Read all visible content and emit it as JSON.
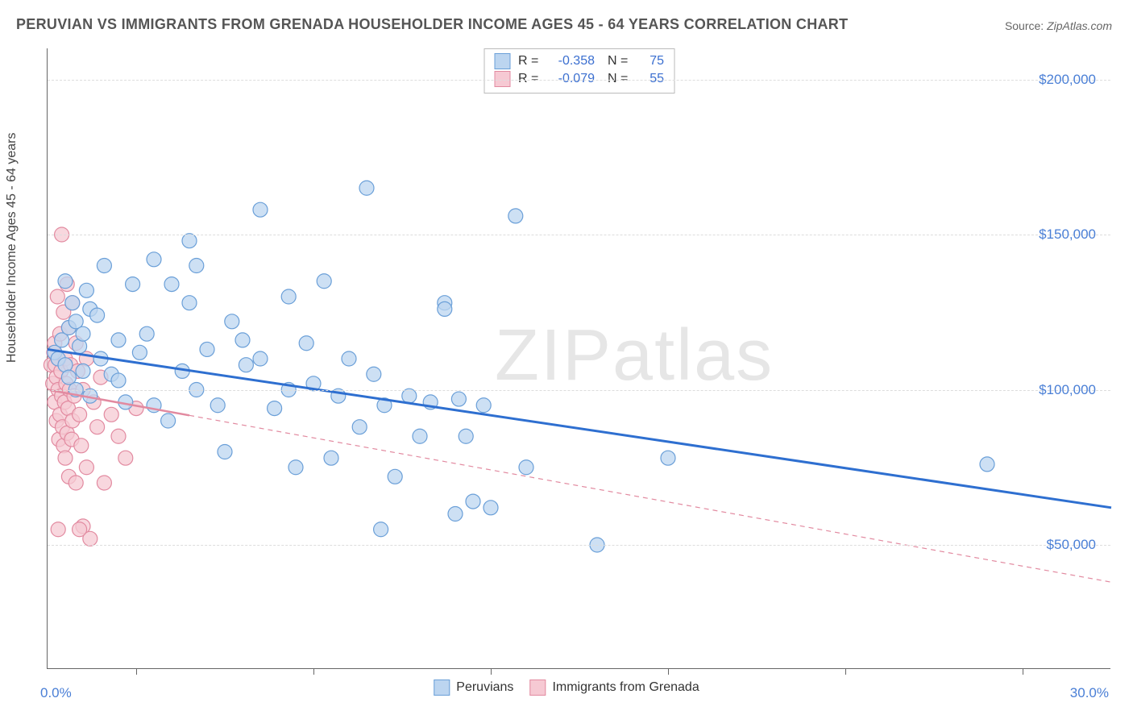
{
  "title": "PERUVIAN VS IMMIGRANTS FROM GRENADA HOUSEHOLDER INCOME AGES 45 - 64 YEARS CORRELATION CHART",
  "source_label": "Source:",
  "source_value": "ZipAtlas.com",
  "ylabel": "Householder Income Ages 45 - 64 years",
  "watermark": "ZIPatlas",
  "chart": {
    "type": "scatter",
    "xlim": [
      0,
      30
    ],
    "ylim": [
      10000,
      210000
    ],
    "x_start_label": "0.0%",
    "x_end_label": "30.0%",
    "xtick_positions": [
      2.5,
      7.5,
      12.5,
      17.5,
      22.5,
      27.5
    ],
    "ygrid": [
      {
        "value": 50000,
        "label": "$50,000"
      },
      {
        "value": 100000,
        "label": "$100,000"
      },
      {
        "value": 150000,
        "label": "$150,000"
      },
      {
        "value": 200000,
        "label": "$200,000"
      }
    ],
    "grid_color": "#dddddd",
    "background_color": "#ffffff",
    "axis_color": "#666666",
    "label_color": "#4a7fd6",
    "marker_radius": 9,
    "marker_stroke_width": 1.2,
    "series": [
      {
        "name": "Peruvians",
        "fill": "#bcd5f0",
        "stroke": "#6a9fd8",
        "trend_color": "#2e6fd0",
        "trend_width": 3,
        "trend_dash": "none",
        "R": "-0.358",
        "N": "75",
        "trend": {
          "x1": 0,
          "y1": 113000,
          "x2": 30,
          "y2": 62000
        },
        "points": [
          [
            0.2,
            112000
          ],
          [
            0.3,
            110000
          ],
          [
            0.4,
            116000
          ],
          [
            0.5,
            135000
          ],
          [
            0.5,
            108000
          ],
          [
            0.6,
            120000
          ],
          [
            0.6,
            104000
          ],
          [
            0.7,
            128000
          ],
          [
            0.8,
            122000
          ],
          [
            0.8,
            100000
          ],
          [
            0.9,
            114000
          ],
          [
            1.0,
            118000
          ],
          [
            1.0,
            106000
          ],
          [
            1.1,
            132000
          ],
          [
            1.2,
            98000
          ],
          [
            1.2,
            126000
          ],
          [
            1.4,
            124000
          ],
          [
            1.5,
            110000
          ],
          [
            1.6,
            140000
          ],
          [
            1.8,
            105000
          ],
          [
            2.0,
            103000
          ],
          [
            2.2,
            96000
          ],
          [
            2.4,
            134000
          ],
          [
            2.6,
            112000
          ],
          [
            2.8,
            118000
          ],
          [
            3.0,
            95000
          ],
          [
            3.0,
            142000
          ],
          [
            3.4,
            90000
          ],
          [
            3.5,
            134000
          ],
          [
            3.8,
            106000
          ],
          [
            4.0,
            148000
          ],
          [
            4.2,
            100000
          ],
          [
            4.2,
            140000
          ],
          [
            4.5,
            113000
          ],
          [
            4.8,
            95000
          ],
          [
            5.0,
            80000
          ],
          [
            5.2,
            122000
          ],
          [
            5.6,
            108000
          ],
          [
            6.0,
            110000
          ],
          [
            6.0,
            158000
          ],
          [
            6.4,
            94000
          ],
          [
            6.8,
            130000
          ],
          [
            7.0,
            75000
          ],
          [
            7.3,
            115000
          ],
          [
            7.5,
            102000
          ],
          [
            7.8,
            135000
          ],
          [
            8.0,
            78000
          ],
          [
            8.2,
            98000
          ],
          [
            8.5,
            110000
          ],
          [
            8.8,
            88000
          ],
          [
            9.0,
            165000
          ],
          [
            9.2,
            105000
          ],
          [
            9.4,
            55000
          ],
          [
            9.5,
            95000
          ],
          [
            9.8,
            72000
          ],
          [
            10.2,
            98000
          ],
          [
            10.5,
            85000
          ],
          [
            10.8,
            96000
          ],
          [
            11.2,
            128000
          ],
          [
            11.2,
            126000
          ],
          [
            11.5,
            60000
          ],
          [
            11.6,
            97000
          ],
          [
            11.8,
            85000
          ],
          [
            12.0,
            64000
          ],
          [
            12.3,
            95000
          ],
          [
            12.5,
            62000
          ],
          [
            13.2,
            156000
          ],
          [
            13.5,
            75000
          ],
          [
            15.5,
            50000
          ],
          [
            17.5,
            78000
          ],
          [
            26.5,
            76000
          ],
          [
            4.0,
            128000
          ],
          [
            5.5,
            116000
          ],
          [
            6.8,
            100000
          ],
          [
            2.0,
            116000
          ]
        ]
      },
      {
        "name": "Immigrants from Grenada",
        "fill": "#f6c9d3",
        "stroke": "#e28aa0",
        "trend_color": "#e28aa0",
        "trend_width": 1.5,
        "trend_dash": "6,5",
        "R": "-0.079",
        "N": "55",
        "trend": {
          "x1": 0,
          "y1": 100000,
          "x2": 30,
          "y2": 38000
        },
        "trend_visible_x_max": 4.0,
        "points": [
          [
            0.1,
            108000
          ],
          [
            0.15,
            102000
          ],
          [
            0.18,
            112000
          ],
          [
            0.2,
            115000
          ],
          [
            0.2,
            96000
          ],
          [
            0.22,
            108000
          ],
          [
            0.25,
            104000
          ],
          [
            0.25,
            90000
          ],
          [
            0.28,
            130000
          ],
          [
            0.3,
            110000
          ],
          [
            0.3,
            100000
          ],
          [
            0.32,
            84000
          ],
          [
            0.35,
            118000
          ],
          [
            0.35,
            92000
          ],
          [
            0.38,
            106000
          ],
          [
            0.4,
            150000
          ],
          [
            0.4,
            98000
          ],
          [
            0.42,
            88000
          ],
          [
            0.45,
            125000
          ],
          [
            0.45,
            82000
          ],
          [
            0.48,
            96000
          ],
          [
            0.5,
            110000
          ],
          [
            0.5,
            78000
          ],
          [
            0.52,
            102000
          ],
          [
            0.55,
            134000
          ],
          [
            0.55,
            86000
          ],
          [
            0.58,
            94000
          ],
          [
            0.6,
            120000
          ],
          [
            0.6,
            72000
          ],
          [
            0.62,
            100000
          ],
          [
            0.65,
            108000
          ],
          [
            0.68,
            84000
          ],
          [
            0.7,
            128000
          ],
          [
            0.7,
            90000
          ],
          [
            0.75,
            98000
          ],
          [
            0.8,
            115000
          ],
          [
            0.8,
            70000
          ],
          [
            0.85,
            106000
          ],
          [
            0.9,
            92000
          ],
          [
            0.95,
            82000
          ],
          [
            1.0,
            100000
          ],
          [
            1.0,
            56000
          ],
          [
            1.1,
            110000
          ],
          [
            1.1,
            75000
          ],
          [
            1.2,
            52000
          ],
          [
            1.3,
            96000
          ],
          [
            1.4,
            88000
          ],
          [
            1.5,
            104000
          ],
          [
            1.6,
            70000
          ],
          [
            1.8,
            92000
          ],
          [
            2.0,
            85000
          ],
          [
            2.2,
            78000
          ],
          [
            2.5,
            94000
          ],
          [
            0.3,
            55000
          ],
          [
            0.9,
            55000
          ]
        ]
      }
    ]
  },
  "legend_top": {
    "R_label": "R =",
    "N_label": "N ="
  },
  "legend_bottom": {
    "items": [
      "Peruvians",
      "Immigrants from Grenada"
    ]
  }
}
